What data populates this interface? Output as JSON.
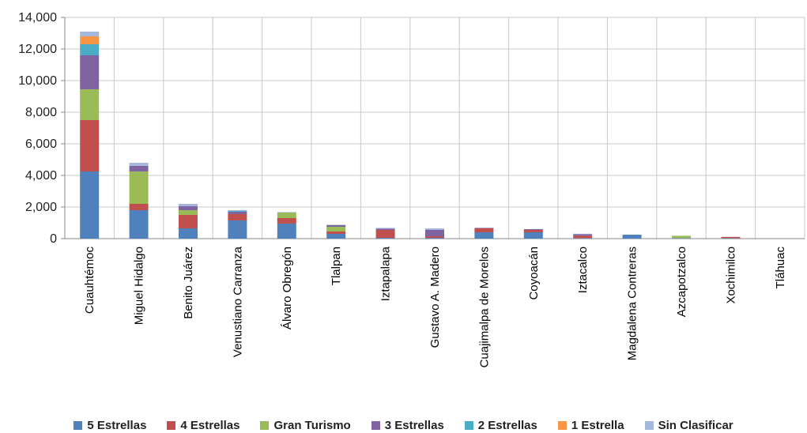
{
  "chart_data": {
    "type": "bar",
    "stacked": true,
    "categories": [
      "Cuauhtémoc",
      "Miguel Hidalgo",
      "Benito Juárez",
      "Venustiano Carranza",
      "Álvaro Obregón",
      "Tlalpan",
      "Iztapalapa",
      "Gustavo A. Madero",
      "Cuajimalpa de Morelos",
      "Coyoacán",
      "Iztacalco",
      "Magdalena Contreras",
      "Azcapotzalco",
      "Xochimilco",
      "Tláhuac"
    ],
    "series": [
      {
        "name": "5 Estrellas",
        "color": "#4F81BD",
        "values": [
          4250,
          1800,
          650,
          1150,
          950,
          300,
          50,
          50,
          400,
          400,
          30,
          250,
          30,
          30,
          0
        ]
      },
      {
        "name": "4 Estrellas",
        "color": "#C0504D",
        "values": [
          3250,
          400,
          850,
          400,
          350,
          150,
          500,
          100,
          250,
          150,
          150,
          0,
          0,
          80,
          0
        ]
      },
      {
        "name": "Gran Turismo",
        "color": "#9BBB59",
        "values": [
          1950,
          2050,
          300,
          0,
          350,
          300,
          0,
          0,
          0,
          0,
          0,
          0,
          150,
          0,
          0
        ]
      },
      {
        "name": "3 Estrellas",
        "color": "#8064A2",
        "values": [
          2150,
          350,
          250,
          150,
          0,
          100,
          80,
          400,
          30,
          50,
          100,
          0,
          0,
          0,
          0
        ]
      },
      {
        "name": "2 Estrellas",
        "color": "#4BACC6",
        "values": [
          700,
          0,
          0,
          50,
          0,
          0,
          0,
          0,
          0,
          0,
          0,
          0,
          0,
          0,
          0
        ]
      },
      {
        "name": "1 Estrella",
        "color": "#F79646",
        "values": [
          500,
          0,
          0,
          0,
          0,
          0,
          0,
          0,
          0,
          0,
          0,
          0,
          0,
          0,
          0
        ]
      },
      {
        "name": "Sin Clasificar",
        "color": "#A5B8DC",
        "values": [
          300,
          200,
          150,
          50,
          30,
          30,
          50,
          100,
          0,
          0,
          30,
          0,
          0,
          0,
          0
        ]
      }
    ],
    "ylim": [
      0,
      14000
    ],
    "yticks": [
      0,
      2000,
      4000,
      6000,
      8000,
      10000,
      12000,
      14000
    ],
    "ytick_labels": [
      "0",
      "2,000",
      "4,000",
      "6,000",
      "8,000",
      "10,000",
      "12,000",
      "14,000"
    ],
    "grid": true,
    "legend_position": "bottom"
  }
}
